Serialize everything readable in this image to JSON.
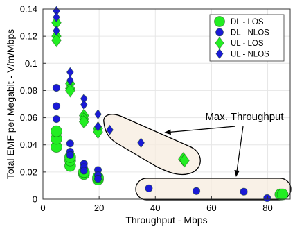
{
  "chart_data": {
    "type": "scatter",
    "title": "",
    "xlabel": "Throughput - Mbps",
    "ylabel": "Total EMF per Megabit - V/m/Mbps",
    "xlim": [
      0,
      88
    ],
    "ylim": [
      0,
      0.14
    ],
    "xticks": [
      0,
      20,
      40,
      60,
      80
    ],
    "yticks": [
      0,
      0.02,
      0.04,
      0.06,
      0.08,
      0.1,
      0.12,
      0.14
    ],
    "grid": true,
    "legend_position": "top-right",
    "series": [
      {
        "name": "DL - LOS",
        "marker": "circle",
        "color": "#22ee22",
        "points": [
          {
            "x": 4.8,
            "y": 0.0385
          },
          {
            "x": 4.8,
            "y": 0.0445
          },
          {
            "x": 4.8,
            "y": 0.05
          },
          {
            "x": 9.7,
            "y": 0.0245
          },
          {
            "x": 9.7,
            "y": 0.0285
          },
          {
            "x": 9.7,
            "y": 0.031
          },
          {
            "x": 14.6,
            "y": 0.0185
          },
          {
            "x": 14.6,
            "y": 0.02
          },
          {
            "x": 19.6,
            "y": 0.0145
          },
          {
            "x": 19.6,
            "y": 0.016
          },
          {
            "x": 84.5,
            "y": 0.0035
          },
          {
            "x": 85.3,
            "y": 0.0035
          }
        ]
      },
      {
        "name": "DL - NLOS",
        "marker": "circle",
        "color": "#1a1ad6",
        "points": [
          {
            "x": 4.8,
            "y": 0.082
          },
          {
            "x": 4.8,
            "y": 0.0685
          },
          {
            "x": 4.8,
            "y": 0.059
          },
          {
            "x": 9.7,
            "y": 0.041
          },
          {
            "x": 9.7,
            "y": 0.035
          },
          {
            "x": 9.7,
            "y": 0.0325
          },
          {
            "x": 14.6,
            "y": 0.026
          },
          {
            "x": 14.6,
            "y": 0.0235
          },
          {
            "x": 14.6,
            "y": 0.021
          },
          {
            "x": 19.6,
            "y": 0.0215
          },
          {
            "x": 19.6,
            "y": 0.0175
          },
          {
            "x": 19.6,
            "y": 0.015
          },
          {
            "x": 37.7,
            "y": 0.008
          },
          {
            "x": 54.6,
            "y": 0.006
          },
          {
            "x": 71.5,
            "y": 0.0055
          },
          {
            "x": 79.8,
            "y": 0.0008
          }
        ]
      },
      {
        "name": "UL - LOS",
        "marker": "diamond",
        "color": "#22ee22",
        "points": [
          {
            "x": 4.8,
            "y": 0.13
          },
          {
            "x": 4.8,
            "y": 0.12
          },
          {
            "x": 4.8,
            "y": 0.117
          },
          {
            "x": 9.7,
            "y": 0.085
          },
          {
            "x": 9.7,
            "y": 0.0815
          },
          {
            "x": 9.7,
            "y": 0.08
          },
          {
            "x": 14.6,
            "y": 0.0615
          },
          {
            "x": 14.6,
            "y": 0.059
          },
          {
            "x": 14.6,
            "y": 0.057
          },
          {
            "x": 19.6,
            "y": 0.052
          },
          {
            "x": 19.6,
            "y": 0.0495
          },
          {
            "x": 49.9,
            "y": 0.0295
          },
          {
            "x": 50.4,
            "y": 0.0285
          }
        ]
      },
      {
        "name": "UL - NLOS",
        "marker": "diamond",
        "color": "#1a1ad6",
        "points": [
          {
            "x": 4.8,
            "y": 0.1385
          },
          {
            "x": 4.8,
            "y": 0.134
          },
          {
            "x": 4.8,
            "y": 0.124
          },
          {
            "x": 9.7,
            "y": 0.0935
          },
          {
            "x": 9.7,
            "y": 0.0875
          },
          {
            "x": 14.6,
            "y": 0.074
          },
          {
            "x": 14.6,
            "y": 0.0695
          },
          {
            "x": 19.6,
            "y": 0.0625
          },
          {
            "x": 19.6,
            "y": 0.0535
          },
          {
            "x": 23.8,
            "y": 0.051
          },
          {
            "x": 34.9,
            "y": 0.0415
          }
        ]
      }
    ],
    "annotations": [
      {
        "text": "Max. Throughput"
      }
    ]
  }
}
